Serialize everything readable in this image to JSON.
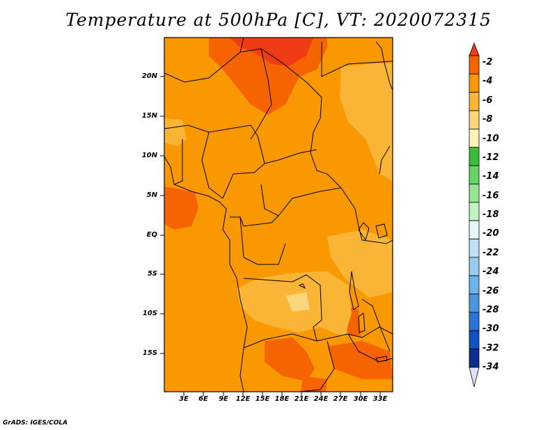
{
  "title": "Temperature at 500hPa [C], VT: 2020072315",
  "footer": "GrADS: IGES/COLA",
  "lat_labels": [
    "20N",
    "15N",
    "10N",
    "5N",
    "EQ",
    "5S",
    "10S",
    "15S"
  ],
  "lon_labels": [
    "3E",
    "6E",
    "9E",
    "12E",
    "15E",
    "18E",
    "21E",
    "24E",
    "27E",
    "30E",
    "33E"
  ],
  "colorbar": {
    "labels": [
      "-2",
      "-4",
      "-6",
      "-8",
      "-10",
      "-12",
      "-14",
      "-16",
      "-18",
      "-20",
      "-22",
      "-24",
      "-26",
      "-28",
      "-30",
      "-32",
      "-34"
    ],
    "colors": [
      "#f03c14",
      "#f56400",
      "#f99800",
      "#fab436",
      "#fcd67a",
      "#fdf3b8",
      "#3bbd3b",
      "#66d466",
      "#95e595",
      "#c2f2c2",
      "#e6f7fb",
      "#bfe1f6",
      "#98ccf0",
      "#6fb1ea",
      "#4c96e1",
      "#2b73d5",
      "#1252c0",
      "#0a2f8c",
      "#e0e0f8"
    ]
  }
}
